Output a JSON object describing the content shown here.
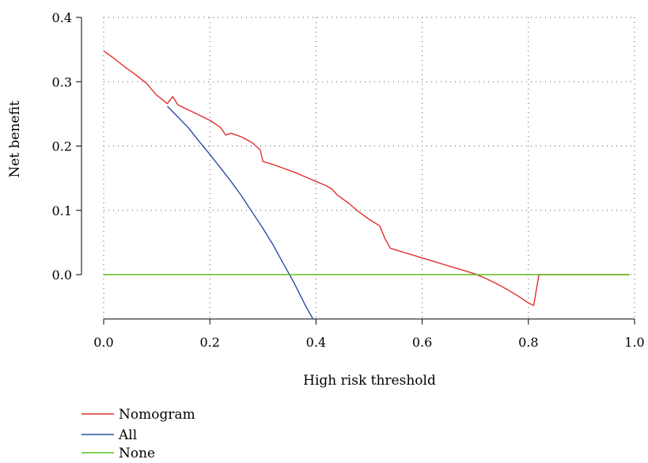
{
  "chart_data": {
    "type": "line",
    "xlabel": "High risk threshold",
    "ylabel": "Net benefit",
    "xlim": [
      0,
      1
    ],
    "ylim": [
      -0.07,
      0.4
    ],
    "x_ticks": [
      0.0,
      0.2,
      0.4,
      0.6,
      0.8,
      1.0
    ],
    "x_tick_labels": [
      "0.0",
      "0.2",
      "0.4",
      "0.6",
      "0.8",
      "1.0"
    ],
    "y_ticks": [
      0.0,
      0.1,
      0.2,
      0.3,
      0.4
    ],
    "y_tick_labels": [
      "0.0",
      "0.1",
      "0.2",
      "0.3",
      "0.4"
    ],
    "grid": "dotted",
    "legend_position": "bottom-left, below plot",
    "series": [
      {
        "name": "Nomogram",
        "color": "#e0302a",
        "x": [
          0.0,
          0.02,
          0.04,
          0.06,
          0.08,
          0.1,
          0.12,
          0.13,
          0.14,
          0.16,
          0.18,
          0.2,
          0.22,
          0.23,
          0.24,
          0.26,
          0.28,
          0.295,
          0.3,
          0.32,
          0.34,
          0.36,
          0.38,
          0.4,
          0.42,
          0.43,
          0.44,
          0.46,
          0.48,
          0.5,
          0.52,
          0.53,
          0.54,
          0.56,
          0.58,
          0.6,
          0.62,
          0.64,
          0.66,
          0.68,
          0.7,
          0.72,
          0.74,
          0.76,
          0.78,
          0.8,
          0.81,
          0.82,
          0.84,
          0.86,
          0.88,
          0.9,
          0.92,
          0.94,
          0.96,
          0.98,
          0.99
        ],
        "y": [
          0.348,
          0.336,
          0.323,
          0.311,
          0.298,
          0.279,
          0.266,
          0.277,
          0.264,
          0.256,
          0.248,
          0.24,
          0.229,
          0.217,
          0.22,
          0.214,
          0.205,
          0.194,
          0.176,
          0.171,
          0.165,
          0.159,
          0.152,
          0.145,
          0.138,
          0.133,
          0.124,
          0.112,
          0.098,
          0.086,
          0.076,
          0.056,
          0.041,
          0.036,
          0.031,
          0.026,
          0.021,
          0.016,
          0.011,
          0.006,
          0.001,
          -0.006,
          -0.014,
          -0.023,
          -0.033,
          -0.044,
          -0.048,
          0.0,
          0.0,
          0.0,
          0.0,
          0.0,
          0.0,
          0.0,
          0.0,
          0.0,
          0.0
        ]
      },
      {
        "name": "All",
        "color": "#2a4ea6",
        "x": [
          0.12,
          0.14,
          0.16,
          0.18,
          0.2,
          0.22,
          0.24,
          0.26,
          0.28,
          0.3,
          0.32,
          0.34,
          0.35,
          0.36,
          0.38,
          0.395
        ],
        "y": [
          0.262,
          0.245,
          0.228,
          0.207,
          0.187,
          0.166,
          0.145,
          0.122,
          0.097,
          0.072,
          0.045,
          0.015,
          0.0,
          -0.015,
          -0.048,
          -0.07
        ]
      },
      {
        "name": "None",
        "color": "#5fbf1f",
        "x": [
          0.0,
          0.99
        ],
        "y": [
          0.0,
          0.0
        ]
      }
    ]
  }
}
